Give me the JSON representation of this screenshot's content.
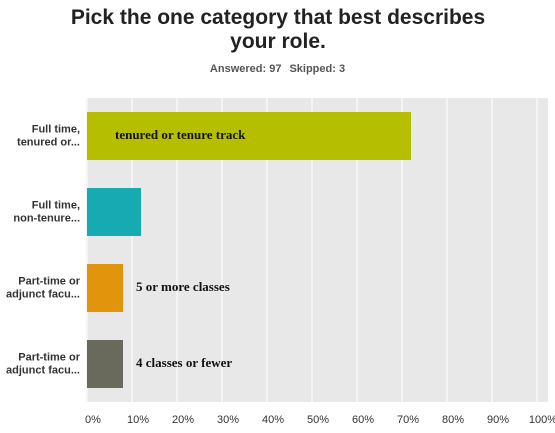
{
  "chart_data": {
    "type": "hbar",
    "title": "Pick the one category that best describes your role.",
    "subtitle": [
      "Answered: 97",
      "Skipped: 3"
    ],
    "categories": [
      [
        "Full time,",
        "tenured or..."
      ],
      [
        "Full time,",
        "non-tenure..."
      ],
      [
        "Part-time or",
        "adjunct facu..."
      ],
      [
        "Part-time or",
        "adjunct facu..."
      ]
    ],
    "values": [
      72,
      12,
      8,
      8
    ],
    "colors": [
      "#b5bf00",
      "#17aab3",
      "#e0950d",
      "#696a5c"
    ],
    "bar_notes": [
      "tenured or tenure track",
      null,
      "5 or more classes",
      "4 classes or fewer"
    ],
    "xlim": [
      0,
      100
    ],
    "xticks": [
      {
        "value": 0,
        "label": "0%"
      },
      {
        "value": 10,
        "label": "10%"
      },
      {
        "value": 20,
        "label": "20%"
      },
      {
        "value": 30,
        "label": "30%"
      },
      {
        "value": 40,
        "label": "40%"
      },
      {
        "value": 50,
        "label": "50%"
      },
      {
        "value": 60,
        "label": "60%"
      },
      {
        "value": 70,
        "label": "70%"
      },
      {
        "value": 80,
        "label": "80%"
      },
      {
        "value": 90,
        "label": "90%"
      },
      {
        "value": 100,
        "label": "100%"
      }
    ],
    "grid": true
  }
}
